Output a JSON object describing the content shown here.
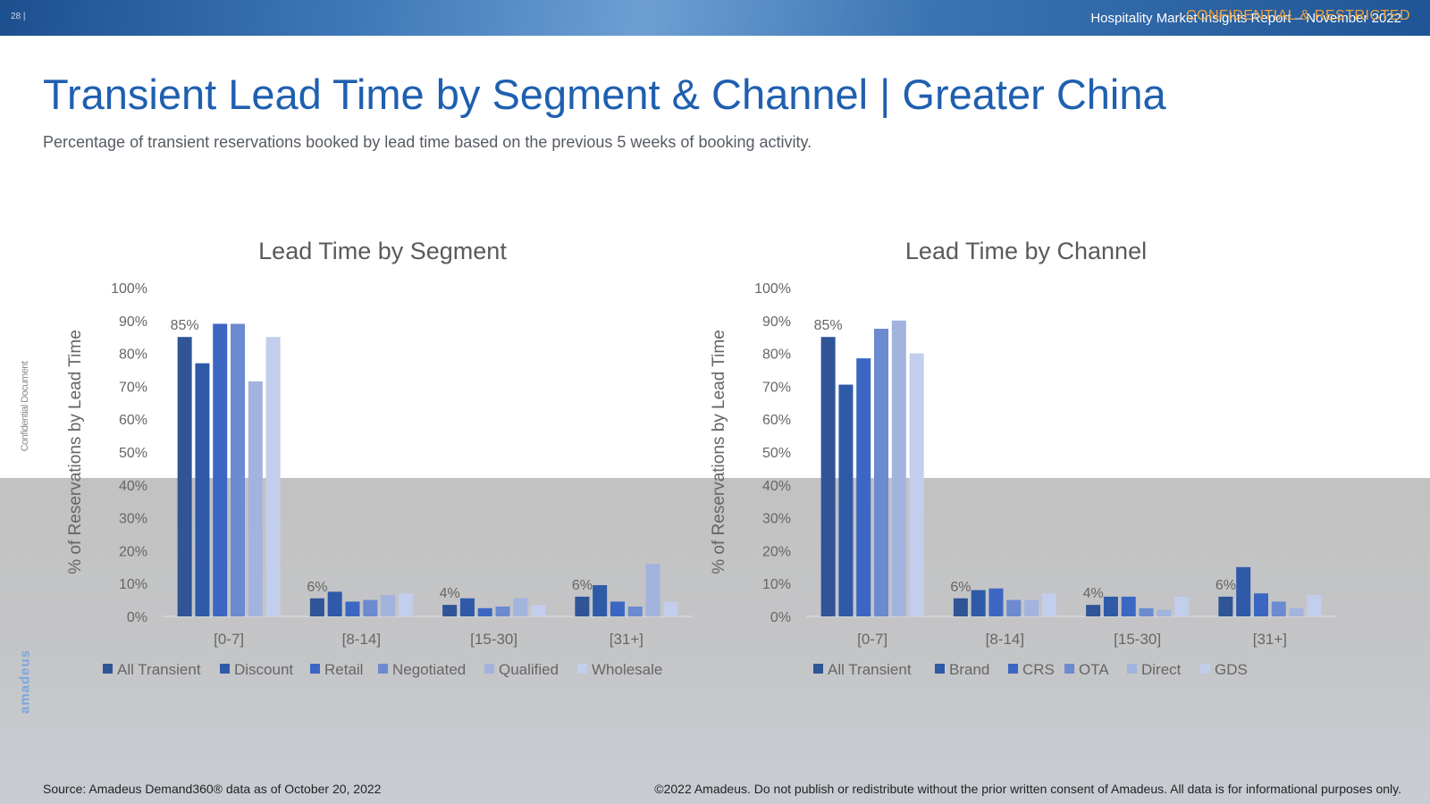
{
  "header": {
    "page_number": "28 |",
    "report": "Hospitality Market Insights Report – November 2022",
    "confidential": "CONFIDENTIAL & RESTRICTED"
  },
  "title": "Transient Lead Time by Segment & Channel | Greater China",
  "subtitle": "Percentage of transient reservations booked by lead time based on the previous 5 weeks of booking activity.",
  "side_label": "Confidential Document",
  "logo": "amadeus",
  "footer": {
    "source": "Source: Amadeus Demand360® data as of October 20, 2022",
    "copyright": "©2022 Amadeus. Do not publish or redistribute without the prior written consent of Amadeus. All data is for informational purposes only."
  },
  "colors": {
    "series": [
      "#2f5597",
      "#2e5aa8",
      "#3b67c3",
      "#6b8ad0",
      "#a2b3de",
      "#c3cdec"
    ],
    "title": "#1f5fb0"
  },
  "chart_data": [
    {
      "type": "bar",
      "title": "Lead Time by Segment",
      "xlabel": "",
      "ylabel": "% of Reservations by Lead Time",
      "ylim": [
        0,
        100
      ],
      "yticks": [
        "0%",
        "10%",
        "20%",
        "30%",
        "40%",
        "50%",
        "60%",
        "70%",
        "80%",
        "90%",
        "100%"
      ],
      "categories": [
        "[0-7]",
        "[8-14]",
        "[15-30]",
        "[31+]"
      ],
      "data_labels": [
        "85%",
        "6%",
        "4%",
        "6%"
      ],
      "series": [
        {
          "name": "All Transient",
          "values": [
            85,
            5.5,
            3.5,
            6
          ]
        },
        {
          "name": "Discount",
          "values": [
            77,
            7.5,
            5.5,
            9.5
          ]
        },
        {
          "name": "Retail",
          "values": [
            89,
            4.5,
            2.5,
            4.5
          ]
        },
        {
          "name": "Negotiated",
          "values": [
            89,
            5,
            3,
            3
          ]
        },
        {
          "name": "Qualified",
          "values": [
            71.5,
            6.5,
            5.5,
            16
          ]
        },
        {
          "name": "Wholesale",
          "values": [
            85,
            7,
            3.5,
            4.5
          ]
        }
      ]
    },
    {
      "type": "bar",
      "title": "Lead Time by Channel",
      "xlabel": "",
      "ylabel": "% of Reservations by Lead Time",
      "ylim": [
        0,
        100
      ],
      "yticks": [
        "0%",
        "10%",
        "20%",
        "30%",
        "40%",
        "50%",
        "60%",
        "70%",
        "80%",
        "90%",
        "100%"
      ],
      "categories": [
        "[0-7]",
        "[8-14]",
        "[15-30]",
        "[31+]"
      ],
      "data_labels": [
        "85%",
        "6%",
        "4%",
        "6%"
      ],
      "series": [
        {
          "name": "All Transient",
          "values": [
            85,
            5.5,
            3.5,
            6
          ]
        },
        {
          "name": "Brand",
          "values": [
            70.5,
            8,
            6,
            15
          ]
        },
        {
          "name": "CRS",
          "values": [
            78.5,
            8.5,
            6,
            7
          ]
        },
        {
          "name": "OTA",
          "values": [
            87.5,
            5,
            2.5,
            4.5
          ]
        },
        {
          "name": "Direct",
          "values": [
            90,
            5,
            2,
            2.5
          ]
        },
        {
          "name": "GDS",
          "values": [
            80,
            7,
            6,
            6.5
          ]
        }
      ]
    }
  ]
}
